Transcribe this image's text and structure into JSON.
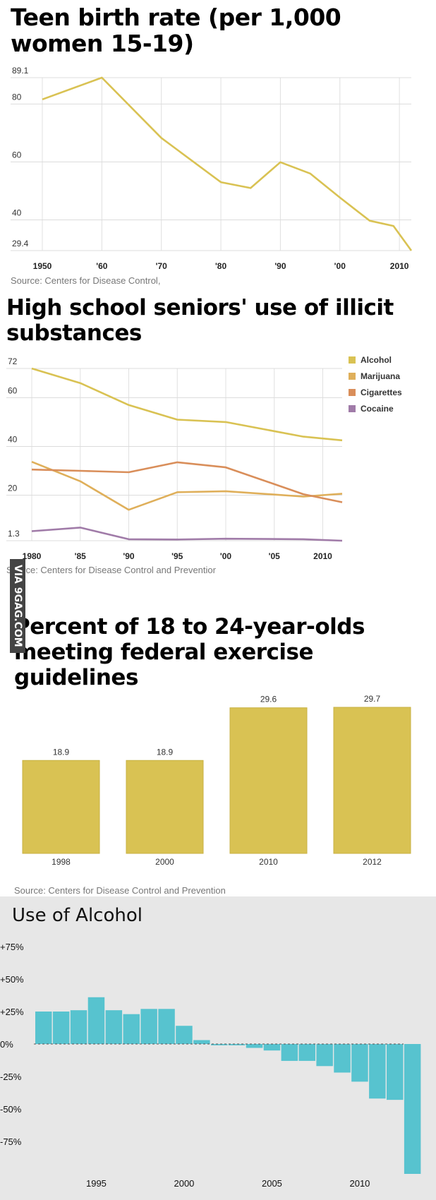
{
  "chart_data": [
    {
      "type": "line",
      "title": "Teen birth rate (per 1,000 women 15-19)",
      "x_ticks": [
        {
          "x": 1950,
          "label": "1950"
        },
        {
          "x": 1960,
          "label": "'60"
        },
        {
          "x": 1970,
          "label": "'70"
        },
        {
          "x": 1980,
          "label": "'80"
        },
        {
          "x": 1990,
          "label": "'90"
        },
        {
          "x": 2000,
          "label": "'00"
        },
        {
          "x": 2010,
          "label": "2010"
        }
      ],
      "y_ticks": [
        "29.4",
        "40",
        "60",
        "80",
        "89.1"
      ],
      "xlim": [
        1950,
        2012
      ],
      "ylim": [
        29.4,
        89.1
      ],
      "series": [
        {
          "name": "Teen birth rate",
          "color": "#d9c253",
          "x": [
            1950,
            1960,
            1970,
            1980,
            1985,
            1990,
            1995,
            2000,
            2005,
            2009,
            2012
          ],
          "y": [
            81.6,
            89.1,
            68.3,
            53.0,
            51.0,
            59.9,
            56.0,
            47.7,
            39.7,
            37.9,
            29.4
          ]
        }
      ],
      "source": "Source: Centers for Disease Control,"
    },
    {
      "type": "line",
      "title": "High school seniors' use of illicit substances",
      "x_ticks": [
        {
          "x": 1980,
          "label": "1980"
        },
        {
          "x": 1985,
          "label": "'85"
        },
        {
          "x": 1990,
          "label": "'90"
        },
        {
          "x": 1995,
          "label": "'95"
        },
        {
          "x": 2000,
          "label": "'00"
        },
        {
          "x": 2005,
          "label": "'05"
        },
        {
          "x": 2010,
          "label": "2010"
        }
      ],
      "y_ticks": [
        "1.3",
        "20",
        "40",
        "60",
        "72"
      ],
      "xlim": [
        1980,
        2012
      ],
      "ylim": [
        1.3,
        72
      ],
      "series": [
        {
          "name": "Alcohol",
          "color": "#d9c253",
          "x": [
            1980,
            1985,
            1990,
            1995,
            2000,
            2008,
            2012
          ],
          "y": [
            72,
            66,
            57,
            51,
            50,
            44,
            42.5
          ]
        },
        {
          "name": "Marijuana",
          "color": "#dfaf5a",
          "x": [
            1980,
            1985,
            1990,
            1995,
            2000,
            2008,
            2012
          ],
          "y": [
            33.7,
            25.7,
            14,
            21.2,
            21.6,
            19.4,
            20.6
          ]
        },
        {
          "name": "Cigarettes",
          "color": "#d98e5a",
          "x": [
            1980,
            1985,
            1990,
            1995,
            2000,
            2008,
            2012
          ],
          "y": [
            30.5,
            30,
            29.4,
            33.5,
            31.4,
            20.4,
            17.1
          ]
        },
        {
          "name": "Cocaine",
          "color": "#a07ba8",
          "x": [
            1980,
            1985,
            1990,
            1995,
            2000,
            2008,
            2012
          ],
          "y": [
            5.2,
            6.7,
            1.9,
            1.8,
            2.1,
            1.9,
            1.3
          ]
        }
      ],
      "source": "Source: Centers for Disease Control and Preventior"
    },
    {
      "type": "bar",
      "title": "Percent of 18 to 24-year-olds meeting federal exercise guidelines",
      "categories": [
        "1998",
        "2000",
        "2010",
        "2012"
      ],
      "values": [
        18.9,
        18.9,
        29.6,
        29.7
      ],
      "value_labels": [
        "18.9",
        "18.9",
        "29.6",
        "29.7"
      ],
      "ylim": [
        0,
        29.7
      ],
      "color": "#d9c253",
      "source": "Source: Centers for Disease Control and Prevention"
    },
    {
      "type": "bar",
      "title": "Use of Alcohol",
      "x_ticks": [
        {
          "x": 1995,
          "label": "1995"
        },
        {
          "x": 2000,
          "label": "2000"
        },
        {
          "x": 2005,
          "label": "2005"
        },
        {
          "x": 2010,
          "label": "2010"
        }
      ],
      "y_ticks": [
        {
          "v": 75,
          "label": "+75%"
        },
        {
          "v": 50,
          "label": "+50%"
        },
        {
          "v": 25,
          "label": "+25%"
        },
        {
          "v": 0,
          "label": "0%"
        },
        {
          "v": -25,
          "label": "-25%"
        },
        {
          "v": -50,
          "label": "-50%"
        },
        {
          "v": -75,
          "label": "-75%"
        }
      ],
      "ylim": [
        -100,
        75
      ],
      "color": "#57c3cf",
      "years": [
        1992,
        1993,
        1994,
        1995,
        1996,
        1997,
        1998,
        1999,
        2000,
        2001,
        2002,
        2003,
        2004,
        2005,
        2006,
        2007,
        2008,
        2009,
        2010,
        2011,
        2012,
        2013
      ],
      "values": [
        25,
        25,
        26,
        36,
        26,
        23,
        27,
        27,
        14,
        3,
        -1,
        -1,
        -3,
        -5,
        -13,
        -13,
        -17,
        -22,
        -29,
        -42,
        -43,
        -100
      ],
      "source": ""
    }
  ],
  "watermark": "VIA 9GAG.COM"
}
